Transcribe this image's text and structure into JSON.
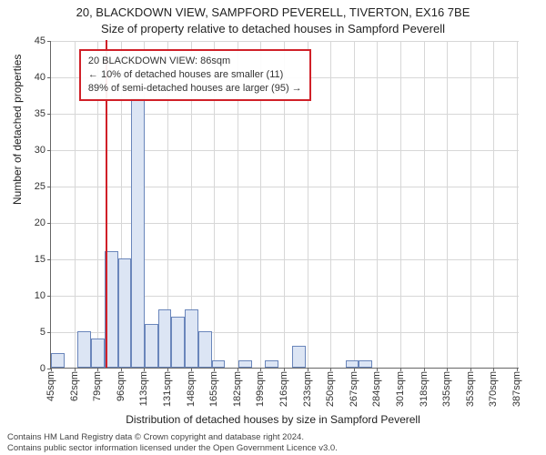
{
  "title_line1": "20, BLACKDOWN VIEW, SAMPFORD PEVERELL, TIVERTON, EX16 7BE",
  "title_line2": "Size of property relative to detached houses in Sampford Peverell",
  "y_axis_label": "Number of detached properties",
  "x_axis_label": "Distribution of detached houses by size in Sampford Peverell",
  "footer_line1": "Contains HM Land Registry data © Crown copyright and database right 2024.",
  "footer_line2": "Contains public sector information licensed under the Open Government Licence v3.0.",
  "chart": {
    "type": "histogram",
    "ylim": [
      0,
      45
    ],
    "ytick_step": 5,
    "xlim": [
      45,
      395
    ],
    "xtick_start": 45,
    "xtick_step": 17.4,
    "xtick_labels": [
      "45sqm",
      "62sqm",
      "79sqm",
      "96sqm",
      "113sqm",
      "131sqm",
      "148sqm",
      "165sqm",
      "182sqm",
      "199sqm",
      "216sqm",
      "233sqm",
      "250sqm",
      "267sqm",
      "284sqm",
      "301sqm",
      "318sqm",
      "335sqm",
      "353sqm",
      "370sqm",
      "387sqm"
    ],
    "bars": [
      {
        "x": 45,
        "count": 2
      },
      {
        "x": 55,
        "count": 0
      },
      {
        "x": 65,
        "count": 5
      },
      {
        "x": 75,
        "count": 4
      },
      {
        "x": 85,
        "count": 16
      },
      {
        "x": 95,
        "count": 15
      },
      {
        "x": 105,
        "count": 37
      },
      {
        "x": 115,
        "count": 6
      },
      {
        "x": 125,
        "count": 8
      },
      {
        "x": 135,
        "count": 7
      },
      {
        "x": 145,
        "count": 8
      },
      {
        "x": 155,
        "count": 5
      },
      {
        "x": 165,
        "count": 1
      },
      {
        "x": 175,
        "count": 0
      },
      {
        "x": 185,
        "count": 1
      },
      {
        "x": 195,
        "count": 0
      },
      {
        "x": 205,
        "count": 1
      },
      {
        "x": 215,
        "count": 0
      },
      {
        "x": 225,
        "count": 3
      },
      {
        "x": 235,
        "count": 0
      },
      {
        "x": 245,
        "count": 0
      },
      {
        "x": 255,
        "count": 0
      },
      {
        "x": 265,
        "count": 1
      },
      {
        "x": 275,
        "count": 1
      }
    ],
    "bin_width": 10,
    "bar_fill": "#dce5f4",
    "bar_stroke": "#6a86bb",
    "grid_color": "#d7d7d7",
    "background_color": "#ffffff",
    "marker": {
      "x": 86,
      "color": "#d02028"
    },
    "info_box": {
      "border_color": "#d02028",
      "line1": "20 BLACKDOWN VIEW: 86sqm",
      "line2": "← 10% of detached houses are smaller (11)",
      "line3": "89% of semi-detached houses are larger (95) →",
      "left_pct": 6,
      "top_pct": 2.5
    }
  }
}
